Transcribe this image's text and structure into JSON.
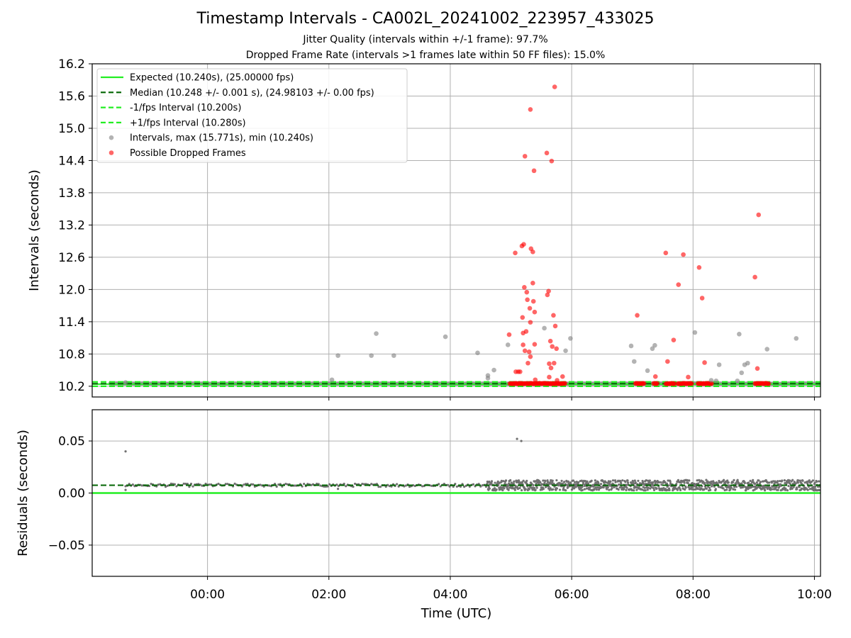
{
  "figure": {
    "title": "Timestamp Intervals - CA002L_20241002_223957_433025",
    "subtitle_1": "Jitter Quality (intervals within +/-1 frame): 97.7%",
    "subtitle_2": "Dropped Frame Rate (intervals >1 frames late within 50 FF files): 15.0%"
  },
  "colors": {
    "expected": "#22ee22",
    "median": "#006400",
    "intervals": "#808080",
    "dropped": "#ff0000",
    "grid": "#b0b0b0"
  },
  "chart_data": [
    {
      "type": "scatter",
      "ylabel": "Intervals (seconds)",
      "ylim": [
        10.0,
        16.2
      ],
      "yticks": [
        10.2,
        10.8,
        11.4,
        12.0,
        12.6,
        13.2,
        13.8,
        14.4,
        15.0,
        15.6,
        16.2
      ],
      "ytick_labels": [
        "10.2",
        "10.8",
        "11.4",
        "12.0",
        "12.6",
        "13.2",
        "13.8",
        "14.4",
        "15.0",
        "15.6",
        "16.2"
      ],
      "xlim_hours": [
        -1.9,
        10.1
      ],
      "grid": true,
      "legend_position": "upper-left",
      "legend": [
        {
          "label": "Expected (10.240s), (25.00000 fps)",
          "kind": "solid-line"
        },
        {
          "label": "Median (10.248 +/- 0.001 s), (24.98103 +/- 0.00 fps)",
          "kind": "dashed-line"
        },
        {
          "label": "-1/fps Interval (10.200s)",
          "kind": "dashed-line"
        },
        {
          "label": "+1/fps Interval (10.280s)",
          "kind": "dashed-line"
        },
        {
          "label": "Intervals, max (15.771s), min (10.240s)",
          "kind": "marker"
        },
        {
          "label": "Possible Dropped Frames",
          "kind": "marker"
        }
      ],
      "reference_lines": {
        "expected": 10.24,
        "median": 10.248,
        "minus_one_frame": 10.2,
        "plus_one_frame": 10.28
      },
      "baseline_clusters": [
        {
          "series": "intervals",
          "x_start": -1.6,
          "x_end": 10.1,
          "y": 10.248
        },
        {
          "series": "dropped",
          "x_start": 4.98,
          "x_end": 5.9,
          "y": 10.25
        },
        {
          "series": "dropped",
          "x_start": 7.05,
          "x_end": 7.2,
          "y": 10.25
        },
        {
          "series": "dropped",
          "x_start": 7.35,
          "x_end": 7.42,
          "y": 10.25
        },
        {
          "series": "dropped",
          "x_start": 7.55,
          "x_end": 7.7,
          "y": 10.25
        },
        {
          "series": "dropped",
          "x_start": 7.75,
          "x_end": 7.98,
          "y": 10.25
        },
        {
          "series": "dropped",
          "x_start": 8.08,
          "x_end": 8.32,
          "y": 10.25
        },
        {
          "series": "dropped",
          "x_start": 9.02,
          "x_end": 9.25,
          "y": 10.25
        }
      ],
      "series": [
        {
          "name": "Intervals",
          "points": [
            [
              -1.35,
              10.27
            ],
            [
              2.05,
              10.32
            ],
            [
              2.15,
              10.77
            ],
            [
              2.7,
              10.77
            ],
            [
              2.78,
              11.18
            ],
            [
              3.07,
              10.77
            ],
            [
              3.92,
              11.12
            ],
            [
              4.45,
              10.82
            ],
            [
              4.62,
              10.4
            ],
            [
              4.62,
              10.35
            ],
            [
              4.72,
              10.5
            ],
            [
              4.95,
              10.97
            ],
            [
              5.55,
              11.28
            ],
            [
              5.9,
              10.86
            ],
            [
              5.98,
              11.09
            ],
            [
              6.98,
              10.95
            ],
            [
              7.03,
              10.66
            ],
            [
              7.25,
              10.49
            ],
            [
              7.33,
              10.9
            ],
            [
              7.37,
              10.96
            ],
            [
              8.03,
              11.2
            ],
            [
              8.3,
              10.31
            ],
            [
              8.38,
              10.3
            ],
            [
              8.43,
              10.6
            ],
            [
              8.73,
              10.3
            ],
            [
              8.76,
              11.17
            ],
            [
              8.8,
              10.45
            ],
            [
              8.85,
              10.6
            ],
            [
              8.9,
              10.63
            ],
            [
              9.22,
              10.89
            ],
            [
              9.7,
              11.09
            ]
          ]
        },
        {
          "name": "Possible Dropped Frames",
          "points": [
            [
              4.97,
              11.16
            ],
            [
              5.07,
              12.68
            ],
            [
              5.08,
              10.47
            ],
            [
              5.12,
              10.47
            ],
            [
              5.15,
              10.47
            ],
            [
              5.18,
              12.81
            ],
            [
              5.19,
              11.48
            ],
            [
              5.2,
              11.19
            ],
            [
              5.2,
              10.97
            ],
            [
              5.21,
              12.84
            ],
            [
              5.22,
              12.04
            ],
            [
              5.23,
              10.86
            ],
            [
              5.23,
              14.48
            ],
            [
              5.25,
              11.22
            ],
            [
              5.26,
              11.95
            ],
            [
              5.27,
              11.81
            ],
            [
              5.28,
              10.63
            ],
            [
              5.3,
              10.84
            ],
            [
              5.31,
              11.65
            ],
            [
              5.32,
              11.39
            ],
            [
              5.32,
              10.75
            ],
            [
              5.32,
              15.35
            ],
            [
              5.33,
              12.76
            ],
            [
              5.36,
              12.7
            ],
            [
              5.36,
              12.12
            ],
            [
              5.37,
              11.78
            ],
            [
              5.38,
              14.21
            ],
            [
              5.39,
              11.58
            ],
            [
              5.39,
              10.98
            ],
            [
              5.4,
              10.32
            ],
            [
              5.59,
              14.54
            ],
            [
              5.6,
              11.9
            ],
            [
              5.62,
              11.97
            ],
            [
              5.63,
              10.62
            ],
            [
              5.63,
              10.37
            ],
            [
              5.65,
              11.04
            ],
            [
              5.66,
              10.54
            ],
            [
              5.67,
              14.39
            ],
            [
              5.68,
              10.94
            ],
            [
              5.7,
              11.52
            ],
            [
              5.71,
              10.63
            ],
            [
              5.72,
              15.77
            ],
            [
              5.73,
              11.32
            ],
            [
              5.75,
              10.9
            ],
            [
              5.76,
              10.31
            ],
            [
              5.85,
              10.38
            ],
            [
              7.08,
              11.52
            ],
            [
              7.38,
              10.38
            ],
            [
              7.55,
              12.68
            ],
            [
              7.58,
              10.66
            ],
            [
              7.68,
              11.06
            ],
            [
              7.76,
              12.09
            ],
            [
              7.84,
              12.65
            ],
            [
              7.92,
              10.37
            ],
            [
              8.1,
              12.41
            ],
            [
              8.15,
              11.84
            ],
            [
              8.19,
              10.64
            ],
            [
              9.02,
              12.23
            ],
            [
              9.06,
              10.53
            ],
            [
              9.08,
              13.39
            ]
          ]
        }
      ]
    },
    {
      "type": "scatter",
      "xlabel": "Time (UTC)",
      "ylabel": "Residuals (seconds)",
      "ylim": [
        -0.08,
        0.08
      ],
      "yticks": [
        -0.05,
        0.0,
        0.05
      ],
      "ytick_labels": [
        "−0.05",
        "0.00",
        "0.05"
      ],
      "xlim_hours": [
        -1.9,
        10.1
      ],
      "xticks_hours": [
        0,
        2,
        4,
        6,
        8,
        10
      ],
      "xtick_labels": [
        "00:00",
        "02:00",
        "04:00",
        "06:00",
        "08:00",
        "10:00"
      ],
      "grid": true,
      "reference_lines": {
        "zero": 0.0,
        "median_offset": 0.0075
      },
      "residual_band": [
        {
          "x_start": -1.35,
          "x_end": 4.6,
          "center": 0.0075,
          "spread": 0.0015
        },
        {
          "x_start": 4.6,
          "x_end": 10.1,
          "center": 0.0075,
          "spread": 0.005
        }
      ],
      "outliers": [
        [
          -1.35,
          0.04
        ],
        [
          -1.35,
          0.003
        ],
        [
          2.15,
          0.004
        ],
        [
          5.1,
          0.052
        ],
        [
          5.17,
          0.05
        ]
      ]
    }
  ]
}
